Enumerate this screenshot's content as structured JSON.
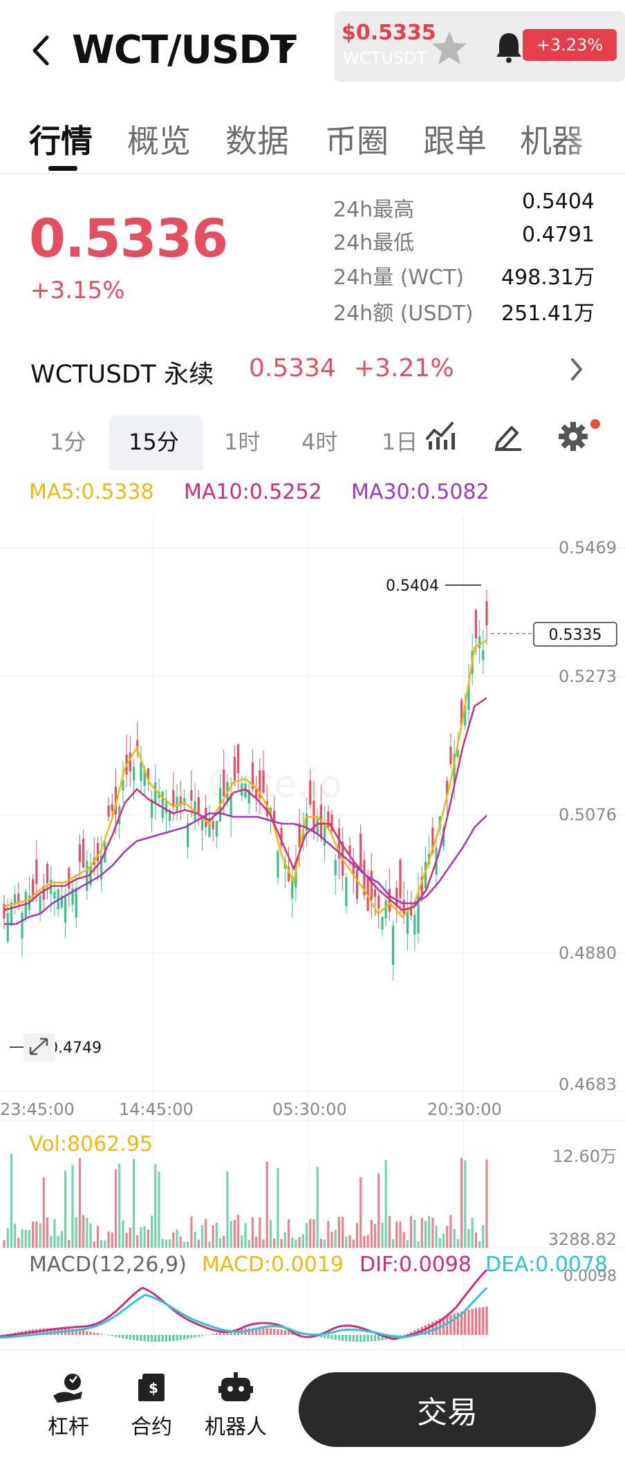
{
  "header": {
    "pair": "WCT/USDT",
    "floating_card": {
      "price": "$0.5335",
      "symbol": "WCTUSDT",
      "badge": "+3.23%"
    }
  },
  "tabs": [
    "行情",
    "概览",
    "数据",
    "币圈",
    "跟单",
    "机器"
  ],
  "ticker": {
    "price": "0.5336",
    "change": "+3.15%",
    "stats": [
      {
        "label": "24h最高",
        "value": "0.5404"
      },
      {
        "label": "24h最低",
        "value": "0.4791"
      },
      {
        "label": "24h量 (WCT)",
        "value": "498.31万"
      },
      {
        "label": "24h额 (USDT)",
        "value": "251.41万"
      }
    ]
  },
  "perpetual": {
    "name": "WCTUSDT 永续",
    "price": "0.5334",
    "change": "+3.21%"
  },
  "intervals": [
    "1分",
    "15分",
    "1时",
    "4时",
    "1日"
  ],
  "active_interval": "15分",
  "ma": {
    "ma5": "MA5:0.5338",
    "ma10": "MA10:0.5252",
    "ma30": "MA30:0.5082"
  },
  "colors": {
    "up": "#e64d5f",
    "down": "#37c08a",
    "ma5": "#f2b90c",
    "ma10": "#d42a7a",
    "ma30": "#a235c9",
    "dea": "#28c6d8"
  },
  "chart_data": [
    {
      "type": "candlestick",
      "title": "",
      "y_ticks": [
        "0.5469",
        "0.5273",
        "0.5076",
        "0.4880",
        "0.4683"
      ],
      "x_ticks": [
        "23:45:00",
        "14:45:00",
        "05:30:00",
        "20:30:00"
      ],
      "ylim": [
        0.4683,
        0.5469
      ],
      "high_label": "0.5404",
      "low_label": "0.4749",
      "last_price_label": "0.5335",
      "watermark": "Gate.io",
      "candles": 135,
      "ma_lines": [
        {
          "name": "MA5",
          "color": "#f2b90c",
          "values": [
            0.495,
            0.4955,
            0.496,
            0.4975,
            0.4985,
            0.4985,
            0.4995,
            0.5005,
            0.503,
            0.508,
            0.515,
            0.518,
            0.513,
            0.511,
            0.5095,
            0.51,
            0.5085,
            0.507,
            0.51,
            0.513,
            0.5135,
            0.512,
            0.509,
            0.5025,
            0.4985,
            0.508,
            0.508,
            0.506,
            0.502,
            0.4995,
            0.497,
            0.494,
            0.4955,
            0.4935,
            0.4955,
            0.5005,
            0.506,
            0.513,
            0.522,
            0.5325,
            0.5335
          ]
        },
        {
          "name": "MA10",
          "color": "#d42a7a",
          "values": [
            0.4945,
            0.495,
            0.4955,
            0.497,
            0.498,
            0.498,
            0.499,
            0.4995,
            0.5015,
            0.5055,
            0.51,
            0.512,
            0.5105,
            0.5095,
            0.5085,
            0.509,
            0.5085,
            0.5075,
            0.509,
            0.5115,
            0.512,
            0.5105,
            0.5085,
            0.5045,
            0.5005,
            0.5055,
            0.507,
            0.507,
            0.504,
            0.5015,
            0.4995,
            0.4975,
            0.496,
            0.4945,
            0.495,
            0.4975,
            0.5025,
            0.51,
            0.518,
            0.524,
            0.5252
          ]
        },
        {
          "name": "MA30",
          "color": "#a235c9",
          "values": [
            0.4925,
            0.4925,
            0.4935,
            0.494,
            0.4955,
            0.4965,
            0.4975,
            0.4985,
            0.4995,
            0.501,
            0.503,
            0.5045,
            0.505,
            0.5055,
            0.506,
            0.5065,
            0.5075,
            0.5085,
            0.5085,
            0.508,
            0.508,
            0.508,
            0.5075,
            0.507,
            0.507,
            0.5065,
            0.5055,
            0.504,
            0.5025,
            0.501,
            0.4995,
            0.4985,
            0.4965,
            0.4955,
            0.4955,
            0.4965,
            0.4985,
            0.501,
            0.5035,
            0.5065,
            0.5082
          ]
        }
      ]
    },
    {
      "type": "bar",
      "title": "Vol:8062.95",
      "y_ticks": [
        "12.60万",
        "3288.82"
      ]
    },
    {
      "type": "bar",
      "title": "MACD(12,26,9)",
      "labels": [
        "MACD:0.0019",
        "DIF:0.0098",
        "DEA:0.0078"
      ],
      "y_ticks": [
        "0.0098"
      ]
    }
  ],
  "bottom_nav": [
    "杠杆",
    "合约",
    "机器人"
  ],
  "trade_button": "交易"
}
